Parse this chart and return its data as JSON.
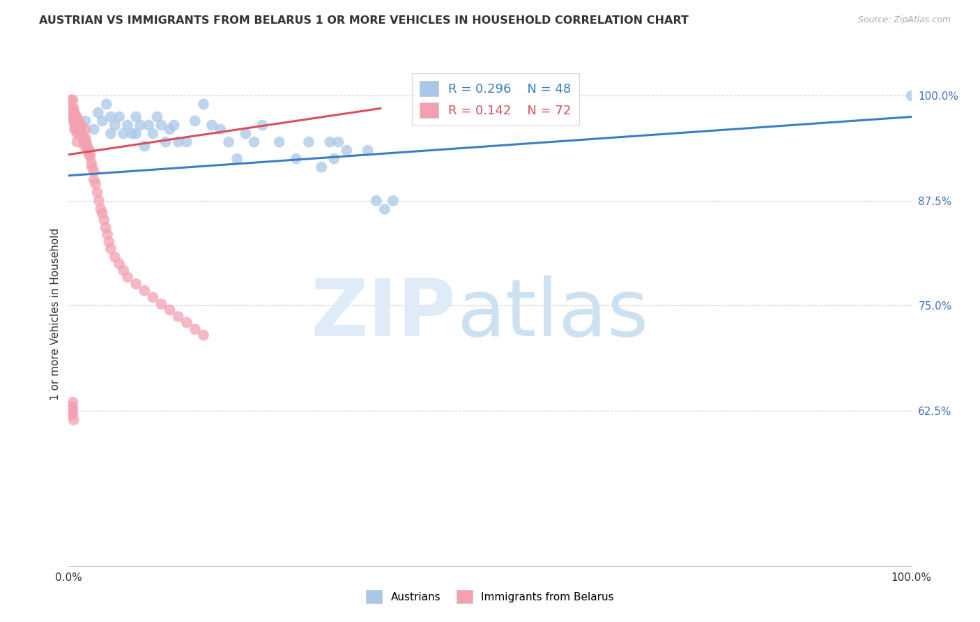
{
  "title": "AUSTRIAN VS IMMIGRANTS FROM BELARUS 1 OR MORE VEHICLES IN HOUSEHOLD CORRELATION CHART",
  "source": "Source: ZipAtlas.com",
  "ylabel": "1 or more Vehicles in Household",
  "xlim": [
    0.0,
    1.0
  ],
  "ylim": [
    0.44,
    1.04
  ],
  "yticks": [
    0.625,
    0.75,
    0.875,
    1.0
  ],
  "ytick_labels": [
    "62.5%",
    "75.0%",
    "87.5%",
    "100.0%"
  ],
  "xtick_labels": [
    "0.0%",
    "100.0%"
  ],
  "legend_blue_r": "R = 0.296",
  "legend_blue_n": "N = 48",
  "legend_pink_r": "R = 0.142",
  "legend_pink_n": "N = 72",
  "blue_color": "#a8c8e8",
  "pink_color": "#f4a0b0",
  "blue_line_color": "#3a7fc1",
  "pink_line_color": "#d94f5c",
  "blue_regression": [
    0.0,
    0.905,
    1.0,
    0.975
  ],
  "pink_regression": [
    0.0,
    0.93,
    0.37,
    0.985
  ],
  "blue_scatter_x": [
    0.015,
    0.02,
    0.03,
    0.035,
    0.04,
    0.045,
    0.05,
    0.05,
    0.055,
    0.06,
    0.065,
    0.07,
    0.075,
    0.08,
    0.08,
    0.085,
    0.09,
    0.095,
    0.1,
    0.105,
    0.11,
    0.115,
    0.12,
    0.125,
    0.13,
    0.14,
    0.15,
    0.16,
    0.17,
    0.18,
    0.19,
    0.2,
    0.21,
    0.22,
    0.23,
    0.25,
    0.27,
    0.285,
    0.3,
    0.31,
    0.315,
    0.32,
    0.33,
    0.355,
    0.365,
    0.375,
    0.385,
    1.0
  ],
  "blue_scatter_y": [
    0.965,
    0.97,
    0.96,
    0.98,
    0.97,
    0.99,
    0.955,
    0.975,
    0.965,
    0.975,
    0.955,
    0.965,
    0.955,
    0.955,
    0.975,
    0.965,
    0.94,
    0.965,
    0.955,
    0.975,
    0.965,
    0.945,
    0.96,
    0.965,
    0.945,
    0.945,
    0.97,
    0.99,
    0.965,
    0.96,
    0.945,
    0.925,
    0.955,
    0.945,
    0.965,
    0.945,
    0.925,
    0.945,
    0.915,
    0.945,
    0.925,
    0.945,
    0.935,
    0.935,
    0.875,
    0.865,
    0.875,
    1.0
  ],
  "pink_scatter_x": [
    0.003,
    0.004,
    0.005,
    0.005,
    0.005,
    0.006,
    0.006,
    0.007,
    0.007,
    0.007,
    0.008,
    0.008,
    0.009,
    0.009,
    0.01,
    0.01,
    0.01,
    0.01,
    0.011,
    0.012,
    0.012,
    0.013,
    0.013,
    0.014,
    0.015,
    0.015,
    0.016,
    0.017,
    0.018,
    0.019,
    0.02,
    0.02,
    0.021,
    0.022,
    0.023,
    0.024,
    0.025,
    0.026,
    0.027,
    0.028,
    0.03,
    0.03,
    0.032,
    0.034,
    0.036,
    0.038,
    0.04,
    0.042,
    0.044,
    0.046,
    0.048,
    0.05,
    0.055,
    0.06,
    0.065,
    0.07,
    0.08,
    0.09,
    0.1,
    0.11,
    0.12,
    0.13,
    0.14,
    0.15,
    0.16,
    0.003,
    0.004,
    0.004,
    0.005,
    0.005,
    0.005,
    0.006
  ],
  "pink_scatter_y": [
    0.995,
    0.985,
    0.995,
    0.98,
    0.97,
    0.985,
    0.975,
    0.98,
    0.97,
    0.96,
    0.975,
    0.965,
    0.97,
    0.96,
    0.975,
    0.965,
    0.955,
    0.945,
    0.965,
    0.97,
    0.96,
    0.965,
    0.955,
    0.96,
    0.965,
    0.955,
    0.955,
    0.95,
    0.945,
    0.94,
    0.96,
    0.95,
    0.945,
    0.94,
    0.935,
    0.93,
    0.935,
    0.928,
    0.92,
    0.915,
    0.91,
    0.9,
    0.895,
    0.885,
    0.875,
    0.865,
    0.86,
    0.852,
    0.843,
    0.835,
    0.826,
    0.818,
    0.808,
    0.8,
    0.792,
    0.784,
    0.776,
    0.768,
    0.76,
    0.752,
    0.745,
    0.737,
    0.73,
    0.722,
    0.715,
    0.63,
    0.625,
    0.62,
    0.635,
    0.628,
    0.621,
    0.614
  ]
}
